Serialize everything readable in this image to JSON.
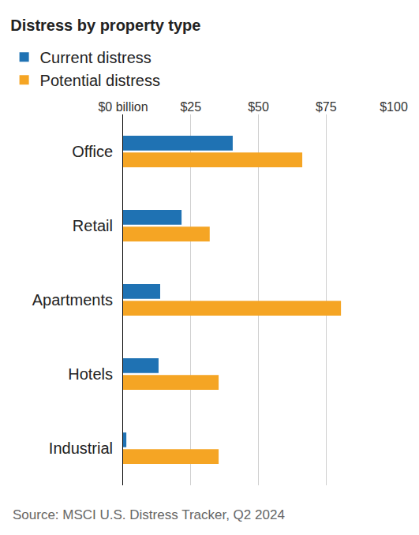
{
  "chart_data": {
    "type": "bar",
    "orientation": "horizontal",
    "title": "Distress by property type",
    "source": "Source: MSCI U.S. Distress Tracker, Q2 2024",
    "categories": [
      "Office",
      "Retail",
      "Apartments",
      "Hotels",
      "Industrial"
    ],
    "series": [
      {
        "name": "Current distress",
        "color": "#1f72b3",
        "values": [
          40.5,
          21.6,
          13.7,
          13.1,
          1.2
        ]
      },
      {
        "name": "Potential distress",
        "color": "#f5a524",
        "values": [
          66.2,
          32,
          80.5,
          35.3,
          35.3
        ]
      }
    ],
    "xlim": [
      0,
      100
    ],
    "xticks": [
      {
        "value": 0,
        "label": "$0 billion"
      },
      {
        "value": 25,
        "label": "$25"
      },
      {
        "value": 50,
        "label": "$50"
      },
      {
        "value": 75,
        "label": "$75"
      },
      {
        "value": 100,
        "label": "$100"
      }
    ],
    "grid": true,
    "legend": "top left"
  }
}
